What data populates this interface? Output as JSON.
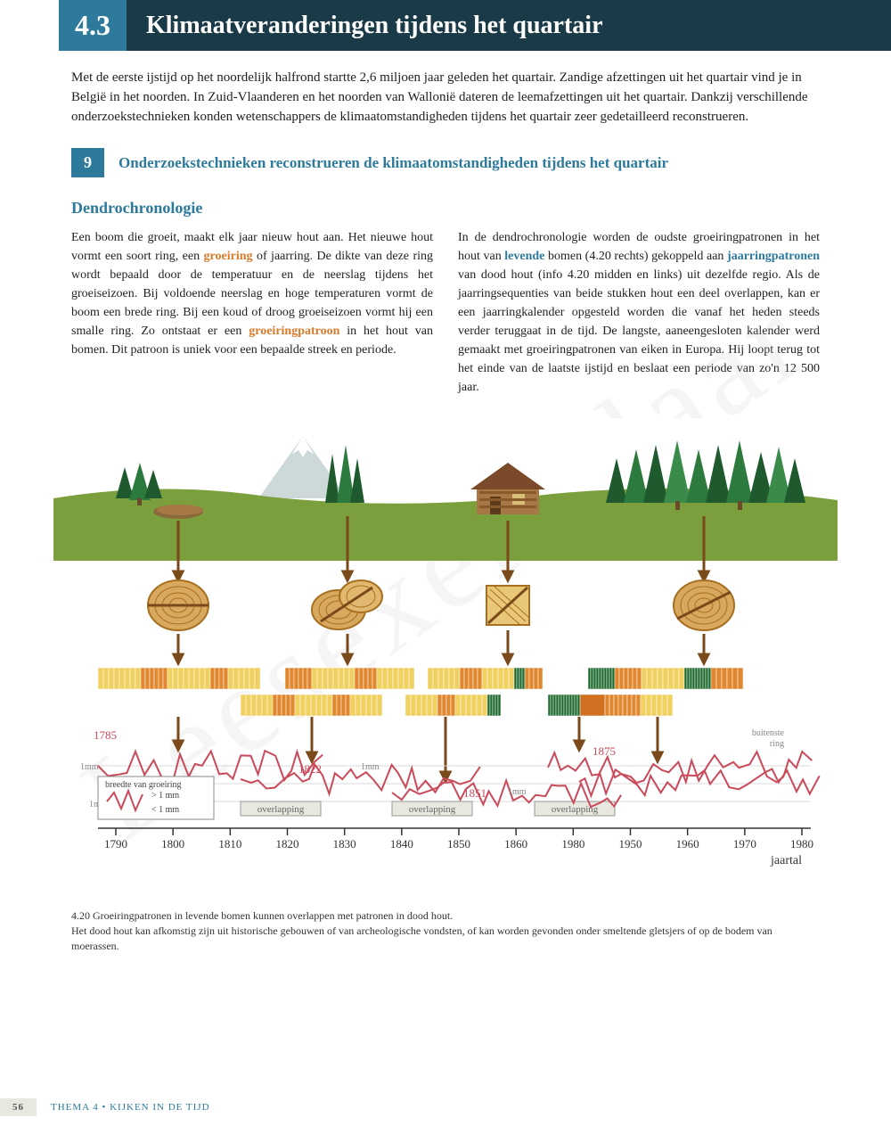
{
  "section": {
    "number": "4.3",
    "title": "Klimaatveranderingen tijdens het quartair"
  },
  "intro": "Met de eerste ijstijd op het noordelijk halfrond startte 2,6 miljoen jaar geleden het quartair. Zandige afzettingen uit het quartair vind je in België in het noorden. In Zuid-Vlaanderen en het noorden van Wallonië dateren de leemafzettingen uit het quartair. Dankzij verschillende onderzoekstechnieken konden wetenschappers de klimaatomstandigheden tijdens het quartair zeer gedetailleerd reconstrueren.",
  "subsection": {
    "number": "9",
    "title": "Onderzoekstechnieken reconstrueren de klimaatomstandigheden tijdens het quartair"
  },
  "heading3": "Dendrochronologie",
  "col1_a": "Een boom die groeit, maakt elk jaar nieuw hout aan. Het nieuwe hout vormt een soort ring, een ",
  "col1_term1": "groeiring",
  "col1_b": " of jaarring. De dikte van deze ring wordt bepaald door de temperatuur en de neerslag tijdens het groeiseizoen. Bij voldoende neerslag en hoge temperaturen vormt de boom een brede ring. Bij een koud of droog groeiseizoen vormt hij een smalle ring. Zo ontstaat er een ",
  "col1_term2": "groeiringpatroon",
  "col1_c": " in het hout van bomen. Dit patroon is uniek voor een bepaalde streek en periode.",
  "col2_a": "In de dendrochronologie worden de oudste groeiringpatronen in het hout van ",
  "col2_term1": "levende",
  "col2_b": " bomen (4.20 rechts) gekoppeld aan ",
  "col2_term2": "jaarringpatronen",
  "col2_c": " van dood hout (info 4.20 midden en links) uit dezelfde regio. Als de jaarringsequenties van beide stukken hout een deel overlappen, kan er een jaarringkalender opgesteld worden die vanaf het heden steeds verder teruggaat in de tijd. De langste, aaneengesloten kalender werd gemaakt met groeiringpatronen van eiken in Europa. Hij loopt terug tot het einde van de laatste ijstijd en beslaat een periode van zo'n 12 500 jaar.",
  "caption_lead": "4.20",
  "caption1": "Groeiringpatronen in levende bomen kunnen overlappen met patronen in dood hout.",
  "caption2": "Het dood hout kan afkomstig zijn uit historische gebouwen of van archeologische vondsten, of kan worden gevonden onder smeltende gletsjers of op de bodem van moerassen.",
  "footer": {
    "page": "56",
    "dot": "•",
    "theme": "THEMA 4",
    "theme_sub": "KIJKEN IN DE TIJD"
  },
  "watermark": "Leesexemplaar",
  "infographic": {
    "type": "infographic",
    "background_sky": "#ffffff",
    "ground_grass": "#7b9f3c",
    "ground_soil": "#b8945f",
    "mountain": "#cdd8d8",
    "tree_greens": [
      "#1e5a2e",
      "#2d7a3e",
      "#3a8a4a"
    ],
    "trunk": "#6b4a2a",
    "cabin_wall": "#a67845",
    "cabin_roof": "#7a4a2a",
    "log_fill": "#d9a85f",
    "log_ring": "#a67020",
    "arrow_color": "#7a4a1a",
    "ring_bar_colors": {
      "yellow": "#f0d060",
      "orange": "#e08830",
      "green": "#1e6a2e",
      "dark_orange": "#d07020"
    },
    "waveform_color": "#c94a5a",
    "grid_color": "#d8d8d8",
    "axis_color": "#333333",
    "text_color": "#444444",
    "overlap_box_fill": "#e8e8e0",
    "overlap_box_stroke": "#999999",
    "legend_box_stroke": "#888888",
    "legend_title": "breedte van groeiring",
    "legend_gt": "> 1 mm",
    "legend_lt": "< 1 mm",
    "overlap_label": "overlapping",
    "year_marks": [
      "1785",
      "1822",
      "1851",
      "1875"
    ],
    "mm_label": "1mm",
    "buitenste_label1": "buitenste",
    "buitenste_label2": "ring",
    "axis_label": "jaartal",
    "ticks": [
      1790,
      1800,
      1810,
      1820,
      1830,
      1840,
      1850,
      1860,
      1980,
      1950,
      1960,
      1970,
      1980
    ],
    "font_axis": 13,
    "font_small": 11
  }
}
